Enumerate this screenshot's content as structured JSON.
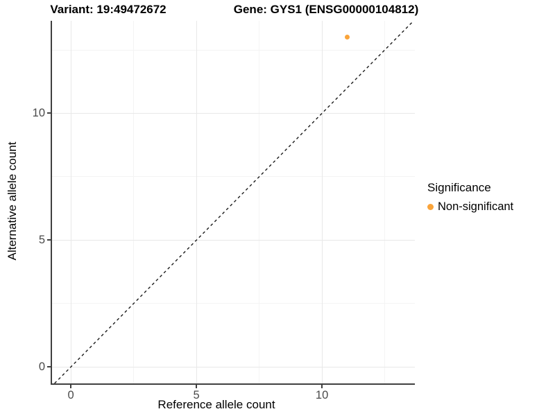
{
  "titles": {
    "variant": "Variant: 19:49472672",
    "gene": "Gene: GYS1 (ENSG00000104812)"
  },
  "axes": {
    "x": {
      "label": "Reference allele count",
      "ticks": [
        "0",
        "5",
        "10"
      ]
    },
    "y": {
      "label": "Alternative allele count",
      "ticks": [
        "0",
        "5",
        "10"
      ]
    }
  },
  "legend": {
    "title": "Significance",
    "items": [
      {
        "label": "Non-significant",
        "color": "#FAA43A"
      }
    ]
  },
  "colors": {
    "point": "#FAA43A",
    "axis_line": "#3f3f3f",
    "tick_text": "#4a4a4a",
    "grid_major": "#e8e8e8",
    "grid_minor": "#f4f4f4",
    "reference_line": "#1a1a1a",
    "background": "#ffffff"
  },
  "chart_data": {
    "type": "scatter",
    "title": "Variant: 19:49472672    Gene: GYS1 (ENSG00000104812)",
    "xlabel": "Reference allele count",
    "ylabel": "Alternative allele count",
    "xlim": [
      -0.75,
      13.7
    ],
    "ylim": [
      -0.65,
      13.65
    ],
    "x_ticks": [
      0,
      5,
      10
    ],
    "y_ticks": [
      0,
      5,
      10
    ],
    "grid_major": [
      0,
      5,
      10
    ],
    "grid_minor": [
      2.5,
      7.5,
      12.5
    ],
    "grid": "on",
    "series": [
      {
        "name": "Non-significant",
        "color": "#FAA43A",
        "points": [
          [
            11,
            13
          ]
        ],
        "point_radius_px": 3.7
      }
    ],
    "reference_line": {
      "kind": "identity",
      "slope": 1,
      "intercept": 0,
      "style": "dashed",
      "color": "#1a1a1a"
    },
    "legend": {
      "title": "Significance",
      "position": "right"
    }
  }
}
